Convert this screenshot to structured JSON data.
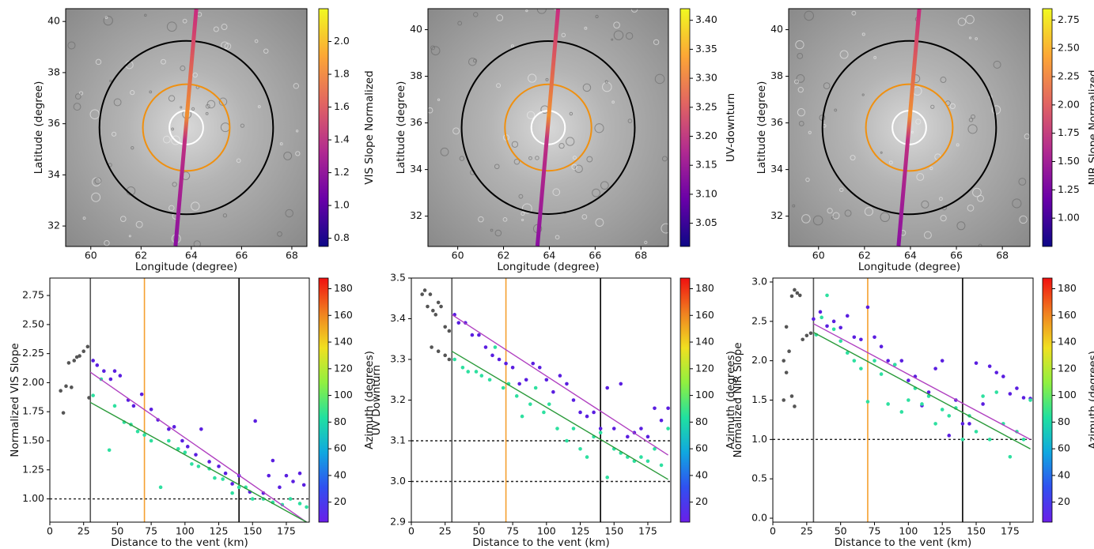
{
  "chart_data": [
    {
      "type": "image",
      "xlabel": "Longitude (degree)",
      "ylabel": "Latitude (degree)",
      "xlim": [
        59,
        68.6
      ],
      "xticks": [
        60,
        62,
        64,
        66,
        68
      ],
      "ylim": [
        31.2,
        40.5
      ],
      "yticks": [
        32,
        34,
        36,
        38,
        40
      ],
      "colorbar": {
        "label": "VIS Slope Normalized",
        "lim": [
          0.75,
          2.2
        ],
        "ticks": [
          0.8,
          {
            "value": 1,
            "label": "1.0"
          },
          1.2,
          1.4,
          1.6,
          1.8,
          {
            "value": 2,
            "label": "2.0"
          }
        ],
        "colors": [
          "#0d0887",
          "#6a00a8",
          "#b12a90",
          "#e16462",
          "#fca636",
          "#f0f921"
        ]
      }
    },
    {
      "type": "image",
      "xlabel": "Longitude (degree)",
      "ylabel": "Latitude (degree)",
      "xlim": [
        58.7,
        69.2
      ],
      "xticks": [
        60,
        62,
        64,
        66,
        68
      ],
      "ylim": [
        30.7,
        40.9
      ],
      "yticks": [
        32,
        34,
        36,
        38,
        40
      ],
      "colorbar": {
        "label": "UV-downturn",
        "lim": [
          3.01,
          3.42
        ],
        "ticks": [
          3.05,
          {
            "value": 3.1,
            "label": "3.10"
          },
          3.15,
          {
            "value": 3.2,
            "label": "3.20"
          },
          3.25,
          {
            "value": 3.3,
            "label": "3.30"
          },
          3.35,
          {
            "value": 3.4,
            "label": "3.40"
          }
        ],
        "colors": [
          "#0d0887",
          "#6a00a8",
          "#b12a90",
          "#e16462",
          "#fca636",
          "#f0f921"
        ]
      }
    },
    {
      "type": "image",
      "xlabel": "Longitude (degree)",
      "ylabel": "Latitude (degree)",
      "xlim": [
        58.7,
        69.2
      ],
      "xticks": [
        60,
        62,
        64,
        66,
        68
      ],
      "ylim": [
        30.7,
        40.9
      ],
      "yticks": [
        32,
        34,
        36,
        38,
        40
      ],
      "colorbar": {
        "label": "NIR Slope Normalized",
        "lim": [
          0.75,
          2.85
        ],
        "ticks": [
          {
            "value": 1,
            "label": "1.00"
          },
          1.25,
          {
            "value": 1.5,
            "label": "1.50"
          },
          1.75,
          {
            "value": 2,
            "label": "2.00"
          },
          2.25,
          {
            "value": 2.5,
            "label": "2.50"
          },
          2.75
        ],
        "colors": [
          "#0d0887",
          "#6a00a8",
          "#b12a90",
          "#e16462",
          "#fca636",
          "#f0f921"
        ]
      }
    },
    {
      "type": "scatter",
      "xlabel": "Distance to the vent (km)",
      "ylabel": "Normalized VIS Slope",
      "xlim": [
        0,
        192
      ],
      "xticks": [
        0,
        25,
        50,
        75,
        100,
        125,
        150,
        175
      ],
      "ylim": [
        0.8,
        2.9
      ],
      "yticks": [
        {
          "value": 1,
          "label": "1.00"
        },
        1.25,
        {
          "value": 1.5,
          "label": "1.50"
        },
        1.75,
        {
          "value": 2,
          "label": "2.00"
        },
        2.25,
        {
          "value": 2.5,
          "label": "2.50"
        },
        2.75
      ],
      "series": [
        {
          "color": "#555555",
          "x": [
            8,
            10,
            12,
            14,
            16,
            18,
            20,
            22,
            25,
            28,
            29
          ],
          "values": [
            1.93,
            1.74,
            1.97,
            2.17,
            1.96,
            2.19,
            2.22,
            2.23,
            2.27,
            2.31,
            1.87
          ]
        },
        {
          "color": "#5a1ee0",
          "x": [
            32,
            35,
            40,
            45,
            48,
            52,
            58,
            62,
            68,
            75,
            80,
            88,
            92,
            98,
            102,
            108,
            112,
            118,
            125,
            130,
            135,
            140,
            148,
            152,
            158,
            162,
            165,
            170,
            175,
            180,
            185,
            188
          ],
          "values": [
            2.19,
            2.15,
            2.1,
            2.03,
            2.1,
            2.06,
            1.85,
            1.8,
            1.9,
            1.77,
            1.68,
            1.6,
            1.62,
            1.5,
            1.45,
            1.38,
            1.6,
            1.32,
            1.28,
            1.22,
            1.13,
            1.2,
            1.06,
            1.67,
            1.05,
            1.2,
            1.33,
            1.1,
            1.2,
            1.15,
            1.22,
            1.12
          ]
        },
        {
          "color": "#2ee0a0",
          "x": [
            32,
            38,
            44,
            48,
            55,
            60,
            65,
            70,
            75,
            82,
            88,
            95,
            100,
            105,
            110,
            118,
            122,
            128,
            135,
            140,
            145,
            150,
            158,
            165,
            172,
            178,
            185,
            190
          ],
          "values": [
            1.89,
            2.03,
            1.42,
            1.8,
            1.66,
            1.64,
            1.58,
            1.55,
            1.5,
            1.1,
            1.5,
            1.43,
            1.4,
            1.3,
            1.28,
            1.26,
            1.18,
            1.17,
            1.05,
            1.1,
            1.1,
            1.0,
            1.0,
            0.97,
            0.95,
            1.0,
            0.96,
            0.93
          ]
        }
      ],
      "fits": [
        {
          "color": "#b040c0",
          "x": [
            30,
            190
          ],
          "values": [
            2.09,
            0.8
          ]
        },
        {
          "color": "#2a9a3a",
          "x": [
            30,
            190
          ],
          "values": [
            1.83,
            0.8
          ]
        }
      ],
      "vlines": [
        {
          "x": 30,
          "color": "#555555"
        },
        {
          "x": 70,
          "color": "#f5a030"
        },
        {
          "x": 140,
          "color": "#000000"
        }
      ],
      "hlines": [
        1.0
      ],
      "colorbar": {
        "label": "Azimuth (degrees)",
        "lim": [
          5,
          188
        ],
        "ticks": [
          20,
          40,
          60,
          80,
          100,
          120,
          140,
          160,
          180
        ],
        "colors": [
          "#6a1ee8",
          "#3050f0",
          "#10a8e0",
          "#20e0a0",
          "#90f040",
          "#f0e020",
          "#f08020",
          "#f01010"
        ]
      }
    },
    {
      "type": "scatter",
      "xlabel": "Distance to the vent (km)",
      "ylabel": "UV Downturn",
      "xlim": [
        0,
        192
      ],
      "xticks": [
        0,
        25,
        50,
        75,
        100,
        125,
        150,
        175
      ],
      "ylim": [
        2.9,
        3.5
      ],
      "yticks": [
        2.9,
        {
          "value": 3,
          "label": "3.0"
        },
        3.1,
        3.2,
        3.3,
        3.4,
        3.5
      ],
      "series": [
        {
          "color": "#555555",
          "x": [
            8,
            10,
            12,
            14,
            16,
            18,
            20,
            22,
            25,
            28,
            15,
            20,
            25,
            28
          ],
          "values": [
            3.46,
            3.47,
            3.43,
            3.46,
            3.42,
            3.41,
            3.44,
            3.43,
            3.38,
            3.37,
            3.33,
            3.32,
            3.31,
            3.3
          ]
        },
        {
          "color": "#5a1ee0",
          "x": [
            32,
            35,
            40,
            45,
            50,
            55,
            60,
            65,
            70,
            75,
            80,
            85,
            90,
            95,
            100,
            105,
            110,
            115,
            120,
            125,
            130,
            135,
            140,
            145,
            150,
            155,
            160,
            165,
            170,
            175,
            180,
            185,
            190
          ],
          "values": [
            3.41,
            3.39,
            3.39,
            3.36,
            3.36,
            3.33,
            3.31,
            3.3,
            3.29,
            3.28,
            3.24,
            3.25,
            3.29,
            3.28,
            3.25,
            3.22,
            3.26,
            3.24,
            3.2,
            3.17,
            3.16,
            3.17,
            3.13,
            3.23,
            3.13,
            3.24,
            3.11,
            3.12,
            3.13,
            3.11,
            3.18,
            3.15,
            3.18
          ]
        },
        {
          "color": "#2ee0a0",
          "x": [
            32,
            38,
            42,
            48,
            52,
            58,
            62,
            68,
            72,
            78,
            82,
            88,
            92,
            98,
            102,
            108,
            115,
            120,
            125,
            130,
            135,
            140,
            145,
            150,
            155,
            160,
            165,
            170,
            175,
            180,
            185,
            190
          ],
          "values": [
            3.3,
            3.28,
            3.27,
            3.27,
            3.26,
            3.25,
            3.33,
            3.23,
            3.24,
            3.21,
            3.16,
            3.19,
            3.23,
            3.17,
            3.19,
            3.13,
            3.1,
            3.13,
            3.08,
            3.06,
            3.11,
            3.12,
            3.01,
            3.08,
            3.07,
            3.06,
            3.05,
            3.06,
            3.05,
            3.08,
            3.04,
            3.13
          ]
        }
      ],
      "fits": [
        {
          "color": "#b040c0",
          "x": [
            30,
            190
          ],
          "values": [
            3.41,
            3.065
          ]
        },
        {
          "color": "#2a9a3a",
          "x": [
            30,
            190
          ],
          "values": [
            3.32,
            3.005
          ]
        }
      ],
      "vlines": [
        {
          "x": 30,
          "color": "#555555"
        },
        {
          "x": 70,
          "color": "#f5a030"
        },
        {
          "x": 140,
          "color": "#000000"
        }
      ],
      "hlines": [
        3.0,
        3.1
      ],
      "colorbar": {
        "label": "Azimuth (degrees)",
        "lim": [
          5,
          188
        ],
        "ticks": [
          20,
          40,
          60,
          80,
          100,
          120,
          140,
          160,
          180
        ],
        "colors": [
          "#6a1ee8",
          "#3050f0",
          "#10a8e0",
          "#20e0a0",
          "#90f040",
          "#f0e020",
          "#f08020",
          "#f01010"
        ]
      }
    },
    {
      "type": "scatter",
      "xlabel": "Distance to the vent (km)",
      "ylabel": "Normalized NIR Slope",
      "xlim": [
        0,
        192
      ],
      "xticks": [
        0,
        25,
        50,
        75,
        100,
        125,
        150,
        175
      ],
      "ylim": [
        -0.05,
        3.05
      ],
      "yticks": [
        {
          "value": 0,
          "label": "0.0"
        },
        0.5,
        {
          "value": 1,
          "label": "1.0"
        },
        1.5,
        {
          "value": 2,
          "label": "2.0"
        },
        2.5,
        {
          "value": 3,
          "label": "3.0"
        }
      ],
      "series": [
        {
          "color": "#555555",
          "x": [
            8,
            10,
            12,
            14,
            16,
            18,
            20,
            22,
            25,
            28,
            8,
            10,
            14,
            16
          ],
          "values": [
            2.0,
            1.85,
            2.12,
            2.82,
            2.9,
            2.86,
            2.83,
            2.27,
            2.32,
            2.35,
            1.5,
            2.43,
            1.55,
            1.42
          ]
        },
        {
          "color": "#5a1ee0",
          "x": [
            30,
            35,
            40,
            45,
            50,
            55,
            60,
            65,
            70,
            75,
            80,
            85,
            90,
            95,
            100,
            105,
            110,
            115,
            120,
            125,
            130,
            135,
            140,
            145,
            150,
            155,
            160,
            165,
            170,
            175,
            180,
            185,
            190
          ],
          "values": [
            2.53,
            2.62,
            2.44,
            2.5,
            2.42,
            2.57,
            2.3,
            2.27,
            2.68,
            2.3,
            2.18,
            2.0,
            1.95,
            2.0,
            1.75,
            1.8,
            1.43,
            1.6,
            1.9,
            2.0,
            1.05,
            1.5,
            1.2,
            1.2,
            1.97,
            1.45,
            1.93,
            1.85,
            1.8,
            1.58,
            1.65,
            1.53,
            1.52
          ]
        },
        {
          "color": "#2ee0a0",
          "x": [
            32,
            36,
            40,
            45,
            50,
            55,
            60,
            65,
            70,
            75,
            80,
            85,
            90,
            95,
            100,
            105,
            110,
            115,
            120,
            125,
            130,
            135,
            140,
            145,
            150,
            155,
            160,
            165,
            170,
            175,
            180,
            185,
            190
          ],
          "values": [
            2.33,
            2.55,
            2.83,
            2.4,
            2.25,
            2.1,
            2.0,
            1.9,
            1.48,
            2.0,
            1.83,
            1.45,
            1.95,
            1.35,
            1.5,
            1.65,
            1.45,
            1.55,
            1.2,
            1.38,
            1.3,
            1.4,
            1.0,
            1.3,
            1.1,
            1.55,
            1.0,
            1.6,
            1.2,
            0.78,
            1.1,
            1.0,
            1.5
          ]
        }
      ],
      "fits": [
        {
          "color": "#b040c0",
          "x": [
            30,
            190
          ],
          "values": [
            2.47,
            1.0
          ]
        },
        {
          "color": "#2a9a3a",
          "x": [
            30,
            190
          ],
          "values": [
            2.36,
            0.88
          ]
        }
      ],
      "vlines": [
        {
          "x": 30,
          "color": "#555555"
        },
        {
          "x": 70,
          "color": "#f5a030"
        },
        {
          "x": 140,
          "color": "#000000"
        }
      ],
      "hlines": [
        1.0
      ],
      "colorbar": {
        "label": "Azimuth (degrees)",
        "lim": [
          5,
          188
        ],
        "ticks": [
          20,
          40,
          60,
          80,
          100,
          120,
          140,
          160,
          180
        ],
        "colors": [
          "#6a1ee8",
          "#3050f0",
          "#10a8e0",
          "#20e0a0",
          "#90f040",
          "#f0e020",
          "#f08020",
          "#f01010"
        ]
      }
    }
  ]
}
